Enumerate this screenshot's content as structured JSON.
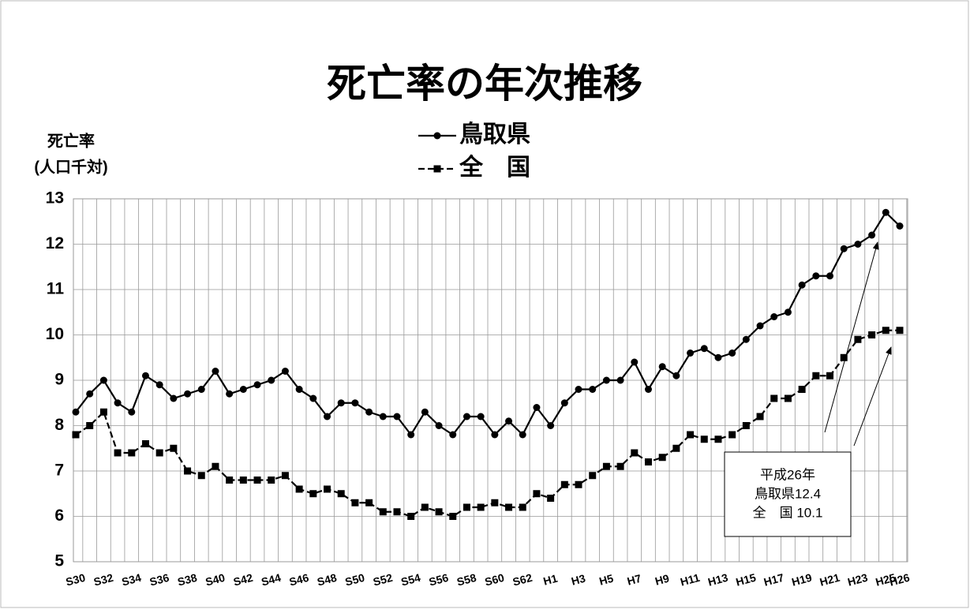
{
  "chart_data": {
    "type": "line",
    "title": "死亡率の年次推移",
    "y_label": [
      "死亡率",
      "(人口千対)"
    ],
    "categories": [
      "S30",
      null,
      "S32",
      null,
      "S34",
      null,
      "S36",
      null,
      "S38",
      null,
      "S40",
      null,
      "S42",
      null,
      "S44",
      null,
      "S46",
      null,
      "S48",
      null,
      "S50",
      null,
      "S52",
      null,
      "S54",
      null,
      "S56",
      null,
      "S58",
      null,
      "S60",
      null,
      "S62",
      null,
      "H1",
      null,
      "H3",
      null,
      "H5",
      null,
      "H7",
      null,
      "H9",
      null,
      "H11",
      null,
      "H13",
      null,
      "H15",
      null,
      "H17",
      null,
      "H19",
      null,
      "H21",
      null,
      "H23",
      null,
      "H25",
      "H26"
    ],
    "series": [
      {
        "name": "鳥取県",
        "color": "#000000",
        "marker": "circle",
        "dash": false,
        "values": [
          8.3,
          8.7,
          9.0,
          8.5,
          8.3,
          9.1,
          8.9,
          8.6,
          8.7,
          8.8,
          9.2,
          8.7,
          8.8,
          8.9,
          9.0,
          9.2,
          8.8,
          8.6,
          8.2,
          8.5,
          8.5,
          8.3,
          8.2,
          8.2,
          7.8,
          8.3,
          8.0,
          7.8,
          8.2,
          8.2,
          7.8,
          8.1,
          7.8,
          8.4,
          8.0,
          8.5,
          8.8,
          8.8,
          9.0,
          9.0,
          9.4,
          8.8,
          9.3,
          9.1,
          9.6,
          9.7,
          9.5,
          9.6,
          9.9,
          10.2,
          10.4,
          10.5,
          11.1,
          11.3,
          11.3,
          11.9,
          12.0,
          12.2,
          12.7,
          12.4
        ]
      },
      {
        "name": "全　国",
        "color": "#000000",
        "marker": "square",
        "dash": true,
        "values": [
          7.8,
          8.0,
          8.3,
          7.4,
          7.4,
          7.6,
          7.4,
          7.5,
          7.0,
          6.9,
          7.1,
          6.8,
          6.8,
          6.8,
          6.8,
          6.9,
          6.6,
          6.5,
          6.6,
          6.5,
          6.3,
          6.3,
          6.1,
          6.1,
          6.0,
          6.2,
          6.1,
          6.0,
          6.2,
          6.2,
          6.3,
          6.2,
          6.2,
          6.5,
          6.4,
          6.7,
          6.7,
          6.9,
          7.1,
          7.1,
          7.4,
          7.2,
          7.3,
          7.5,
          7.8,
          7.7,
          7.7,
          7.8,
          8.0,
          8.2,
          8.6,
          8.6,
          8.8,
          9.1,
          9.1,
          9.5,
          9.9,
          10.0,
          10.1,
          10.1
        ]
      }
    ],
    "ylim": [
      5,
      13
    ],
    "yticks": [
      5,
      6,
      7,
      8,
      9,
      10,
      11,
      12,
      13
    ],
    "grid": true,
    "annotation": [
      "平成26年",
      "鳥取県12.4",
      "全　国 10.1"
    ]
  }
}
